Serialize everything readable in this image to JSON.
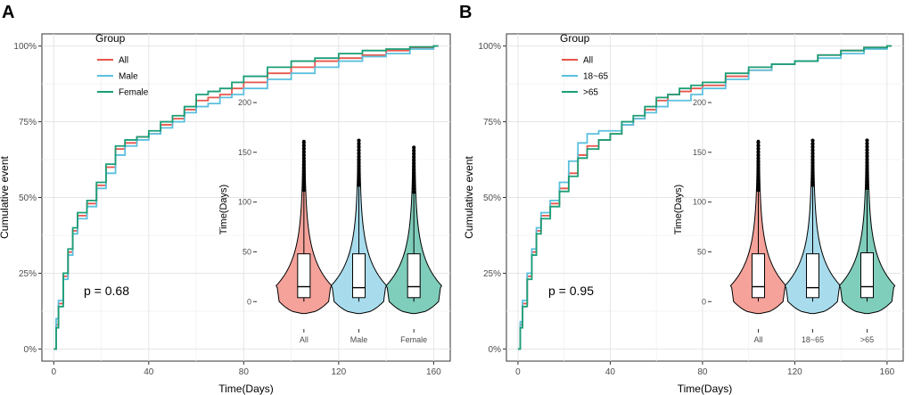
{
  "chart_data": [
    {
      "panel": "A",
      "type": "line",
      "subtype": "cumulative-event-step",
      "xlabel": "Time(Days)",
      "ylabel": "Cumulative event",
      "xlim": [
        -5,
        167
      ],
      "ylim": [
        0,
        1
      ],
      "xticks": [
        0,
        40,
        80,
        120,
        160
      ],
      "yticks": [
        0,
        0.25,
        0.5,
        0.75,
        1.0
      ],
      "ytick_labels": [
        "0%",
        "25%",
        "50%",
        "75%",
        "100%"
      ],
      "legend_title": "Group",
      "pvalue": "p = 0.68",
      "series": [
        {
          "name": "All",
          "color": "#E8554A",
          "points": [
            [
              0,
              0
            ],
            [
              1,
              0.08
            ],
            [
              2,
              0.15
            ],
            [
              4,
              0.24
            ],
            [
              6,
              0.32
            ],
            [
              8,
              0.39
            ],
            [
              10,
              0.44
            ],
            [
              14,
              0.48
            ],
            [
              18,
              0.54
            ],
            [
              22,
              0.6
            ],
            [
              26,
              0.66
            ],
            [
              30,
              0.68
            ],
            [
              35,
              0.7
            ],
            [
              40,
              0.71
            ],
            [
              45,
              0.74
            ],
            [
              50,
              0.76
            ],
            [
              55,
              0.79
            ],
            [
              60,
              0.82
            ],
            [
              65,
              0.83
            ],
            [
              70,
              0.84
            ],
            [
              75,
              0.86
            ],
            [
              80,
              0.88
            ],
            [
              90,
              0.91
            ],
            [
              100,
              0.93
            ],
            [
              110,
              0.95
            ],
            [
              120,
              0.96
            ],
            [
              130,
              0.97
            ],
            [
              140,
              0.985
            ],
            [
              150,
              0.995
            ],
            [
              160,
              1.0
            ]
          ]
        },
        {
          "name": "Male",
          "color": "#5BC0DE",
          "points": [
            [
              0,
              0
            ],
            [
              1,
              0.1
            ],
            [
              2,
              0.16
            ],
            [
              4,
              0.23
            ],
            [
              6,
              0.31
            ],
            [
              8,
              0.38
            ],
            [
              10,
              0.43
            ],
            [
              14,
              0.47
            ],
            [
              18,
              0.53
            ],
            [
              22,
              0.58
            ],
            [
              26,
              0.64
            ],
            [
              30,
              0.67
            ],
            [
              35,
              0.69
            ],
            [
              40,
              0.71
            ],
            [
              45,
              0.73
            ],
            [
              50,
              0.75
            ],
            [
              55,
              0.78
            ],
            [
              60,
              0.8
            ],
            [
              65,
              0.81
            ],
            [
              70,
              0.83
            ],
            [
              75,
              0.84
            ],
            [
              80,
              0.86
            ],
            [
              90,
              0.89
            ],
            [
              100,
              0.91
            ],
            [
              110,
              0.93
            ],
            [
              120,
              0.95
            ],
            [
              130,
              0.965
            ],
            [
              140,
              0.975
            ],
            [
              150,
              0.99
            ],
            [
              160,
              1.0
            ]
          ]
        },
        {
          "name": "Female",
          "color": "#1B9E77",
          "points": [
            [
              0,
              0
            ],
            [
              1,
              0.07
            ],
            [
              2,
              0.14
            ],
            [
              4,
              0.25
            ],
            [
              6,
              0.33
            ],
            [
              8,
              0.4
            ],
            [
              10,
              0.45
            ],
            [
              14,
              0.49
            ],
            [
              18,
              0.55
            ],
            [
              22,
              0.61
            ],
            [
              26,
              0.67
            ],
            [
              30,
              0.69
            ],
            [
              35,
              0.7
            ],
            [
              40,
              0.72
            ],
            [
              45,
              0.75
            ],
            [
              50,
              0.77
            ],
            [
              55,
              0.8
            ],
            [
              60,
              0.84
            ],
            [
              65,
              0.85
            ],
            [
              70,
              0.86
            ],
            [
              75,
              0.88
            ],
            [
              80,
              0.9
            ],
            [
              90,
              0.93
            ],
            [
              100,
              0.95
            ],
            [
              110,
              0.96
            ],
            [
              120,
              0.975
            ],
            [
              130,
              0.985
            ],
            [
              140,
              0.99
            ],
            [
              150,
              0.997
            ],
            [
              160,
              1.0
            ]
          ]
        }
      ],
      "inset": {
        "type": "violin-box",
        "ylabel": "Time(Days)",
        "ylim": [
          -15,
          200
        ],
        "yticks": [
          0,
          50,
          100,
          150,
          200
        ],
        "categories": [
          "All",
          "Male",
          "Female"
        ],
        "colors": [
          "#F4A29A",
          "#A8DCEC",
          "#7FCDBB"
        ],
        "box": [
          {
            "min": 0,
            "q1": 4,
            "median": 15,
            "q3": 48,
            "max": 110
          },
          {
            "min": 0,
            "q1": 4,
            "median": 14,
            "q3": 48,
            "max": 115
          },
          {
            "min": 0,
            "q1": 4,
            "median": 15,
            "q3": 48,
            "max": 108
          }
        ],
        "max_value": [
          163,
          163,
          157
        ]
      }
    },
    {
      "panel": "B",
      "type": "line",
      "subtype": "cumulative-event-step",
      "xlabel": "Time(Days)",
      "ylabel": "Cumulative event",
      "xlim": [
        -5,
        167
      ],
      "ylim": [
        0,
        1
      ],
      "xticks": [
        0,
        40,
        80,
        120,
        160
      ],
      "yticks": [
        0,
        0.25,
        0.5,
        0.75,
        1.0
      ],
      "ytick_labels": [
        "0%",
        "25%",
        "50%",
        "75%",
        "100%"
      ],
      "legend_title": "Group",
      "pvalue": "p = 0.95",
      "series": [
        {
          "name": "All",
          "color": "#E8554A",
          "points": [
            [
              0,
              0
            ],
            [
              1,
              0.08
            ],
            [
              2,
              0.15
            ],
            [
              4,
              0.24
            ],
            [
              6,
              0.32
            ],
            [
              8,
              0.39
            ],
            [
              10,
              0.44
            ],
            [
              14,
              0.48
            ],
            [
              18,
              0.53
            ],
            [
              22,
              0.58
            ],
            [
              26,
              0.64
            ],
            [
              30,
              0.67
            ],
            [
              35,
              0.69
            ],
            [
              40,
              0.71
            ],
            [
              45,
              0.74
            ],
            [
              50,
              0.76
            ],
            [
              55,
              0.79
            ],
            [
              60,
              0.82
            ],
            [
              65,
              0.84
            ],
            [
              70,
              0.85
            ],
            [
              75,
              0.86
            ],
            [
              80,
              0.87
            ],
            [
              90,
              0.9
            ],
            [
              100,
              0.92
            ],
            [
              110,
              0.94
            ],
            [
              120,
              0.95
            ],
            [
              130,
              0.97
            ],
            [
              140,
              0.985
            ],
            [
              150,
              0.995
            ],
            [
              160,
              1.0
            ]
          ]
        },
        {
          "name": "18~65",
          "color": "#5BC0DE",
          "points": [
            [
              0,
              0
            ],
            [
              1,
              0.09
            ],
            [
              2,
              0.16
            ],
            [
              4,
              0.25
            ],
            [
              6,
              0.33
            ],
            [
              8,
              0.4
            ],
            [
              10,
              0.45
            ],
            [
              14,
              0.49
            ],
            [
              18,
              0.55
            ],
            [
              22,
              0.62
            ],
            [
              26,
              0.68
            ],
            [
              30,
              0.71
            ],
            [
              35,
              0.72
            ],
            [
              40,
              0.72
            ],
            [
              45,
              0.74
            ],
            [
              50,
              0.76
            ],
            [
              55,
              0.78
            ],
            [
              60,
              0.8
            ],
            [
              65,
              0.82
            ],
            [
              70,
              0.82
            ],
            [
              75,
              0.84
            ],
            [
              80,
              0.86
            ],
            [
              90,
              0.89
            ],
            [
              100,
              0.92
            ],
            [
              110,
              0.94
            ],
            [
              120,
              0.95
            ],
            [
              130,
              0.96
            ],
            [
              140,
              0.975
            ],
            [
              150,
              0.99
            ],
            [
              160,
              1.0
            ]
          ]
        },
        {
          "name": ">65",
          "color": "#1B9E77",
          "points": [
            [
              0,
              0
            ],
            [
              1,
              0.07
            ],
            [
              2,
              0.14
            ],
            [
              4,
              0.23
            ],
            [
              6,
              0.31
            ],
            [
              8,
              0.38
            ],
            [
              10,
              0.43
            ],
            [
              14,
              0.47
            ],
            [
              18,
              0.52
            ],
            [
              22,
              0.57
            ],
            [
              26,
              0.63
            ],
            [
              30,
              0.66
            ],
            [
              35,
              0.69
            ],
            [
              40,
              0.71
            ],
            [
              45,
              0.75
            ],
            [
              50,
              0.77
            ],
            [
              55,
              0.8
            ],
            [
              60,
              0.83
            ],
            [
              65,
              0.84
            ],
            [
              70,
              0.86
            ],
            [
              75,
              0.87
            ],
            [
              80,
              0.88
            ],
            [
              90,
              0.91
            ],
            [
              100,
              0.93
            ],
            [
              110,
              0.94
            ],
            [
              120,
              0.95
            ],
            [
              130,
              0.97
            ],
            [
              140,
              0.985
            ],
            [
              150,
              0.995
            ],
            [
              160,
              1.0
            ]
          ]
        }
      ],
      "inset": {
        "type": "violin-box",
        "ylabel": "Time(Days)",
        "ylim": [
          -15,
          200
        ],
        "yticks": [
          0,
          50,
          100,
          150,
          200
        ],
        "categories": [
          "All",
          "18~65",
          ">65"
        ],
        "colors": [
          "#F4A29A",
          "#A8DCEC",
          "#7FCDBB"
        ],
        "box": [
          {
            "min": 0,
            "q1": 4,
            "median": 15,
            "q3": 48,
            "max": 110
          },
          {
            "min": 0,
            "q1": 4,
            "median": 14,
            "q3": 48,
            "max": 115
          },
          {
            "min": 0,
            "q1": 4,
            "median": 15,
            "q3": 49,
            "max": 112
          }
        ],
        "max_value": [
          163,
          163,
          163
        ]
      }
    }
  ]
}
